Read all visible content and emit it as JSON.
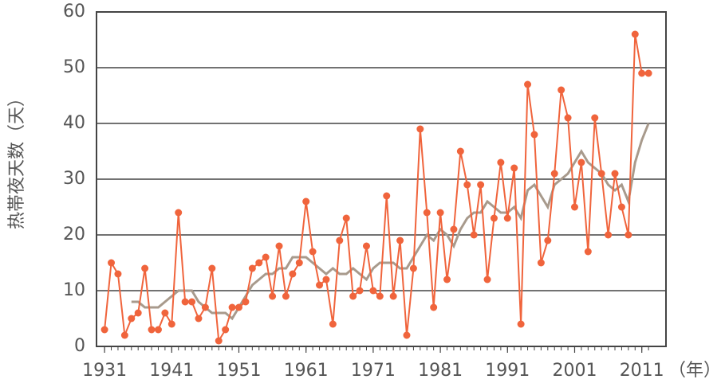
{
  "chart_data": {
    "type": "line",
    "ylabel": "热帯夜天数（天）",
    "xlabel": "（年）",
    "x": [
      1931,
      1932,
      1933,
      1934,
      1935,
      1936,
      1937,
      1938,
      1939,
      1940,
      1941,
      1942,
      1943,
      1944,
      1945,
      1946,
      1947,
      1948,
      1949,
      1950,
      1951,
      1952,
      1953,
      1954,
      1955,
      1956,
      1957,
      1958,
      1959,
      1960,
      1961,
      1962,
      1963,
      1964,
      1965,
      1966,
      1967,
      1968,
      1969,
      1970,
      1971,
      1972,
      1973,
      1974,
      1975,
      1976,
      1977,
      1978,
      1979,
      1980,
      1981,
      1982,
      1983,
      1984,
      1985,
      1986,
      1987,
      1988,
      1989,
      1990,
      1991,
      1992,
      1993,
      1994,
      1995,
      1996,
      1997,
      1998,
      1999,
      2000,
      2001,
      2002,
      2003,
      2004,
      2005,
      2006,
      2007,
      2008,
      2009,
      2010,
      2011,
      2012
    ],
    "series": [
      {
        "color": "#f0643c",
        "values": [
          3,
          15,
          13,
          2,
          5,
          6,
          14,
          3,
          3,
          6,
          4,
          24,
          8,
          8,
          5,
          7,
          14,
          1,
          3,
          7,
          7,
          8,
          14,
          15,
          16,
          9,
          18,
          9,
          13,
          15,
          26,
          17,
          11,
          12,
          4,
          19,
          23,
          9,
          10,
          18,
          10,
          9,
          27,
          9,
          19,
          2,
          14,
          39,
          24,
          7,
          24,
          12,
          21,
          35,
          29,
          20,
          29,
          12,
          23,
          33,
          23,
          32,
          4,
          47,
          38,
          15,
          19,
          31,
          46,
          41,
          25,
          33,
          17,
          41,
          31,
          20,
          31,
          25,
          20,
          56,
          49,
          49
        ]
      },
      {
        "color": "#a89a8c",
        "values": [
          null,
          null,
          null,
          null,
          8,
          8,
          7,
          7,
          7,
          8,
          9,
          10,
          10,
          10,
          8,
          7,
          6,
          6,
          6,
          5,
          7,
          9,
          11,
          12,
          13,
          13,
          14,
          14,
          16,
          16,
          16,
          15,
          14,
          13,
          14,
          13,
          13,
          14,
          13,
          12,
          14,
          15,
          15,
          15,
          14,
          14,
          16,
          18,
          20,
          19,
          21,
          20,
          18,
          21,
          23,
          24,
          24,
          26,
          25,
          24,
          24,
          25,
          23,
          28,
          29,
          27,
          25,
          29,
          30,
          31,
          33,
          35,
          33,
          32,
          31,
          29,
          28,
          29,
          26,
          33,
          37,
          40
        ]
      }
    ],
    "xlim": [
      1929.8,
      2014.6
    ],
    "xticks": [
      1931,
      1941,
      1951,
      1961,
      1971,
      1981,
      1991,
      2001,
      2011
    ],
    "ylim": [
      0,
      60
    ],
    "yticks": [
      0,
      10,
      20,
      30,
      40,
      50,
      60
    ],
    "grid": true
  }
}
